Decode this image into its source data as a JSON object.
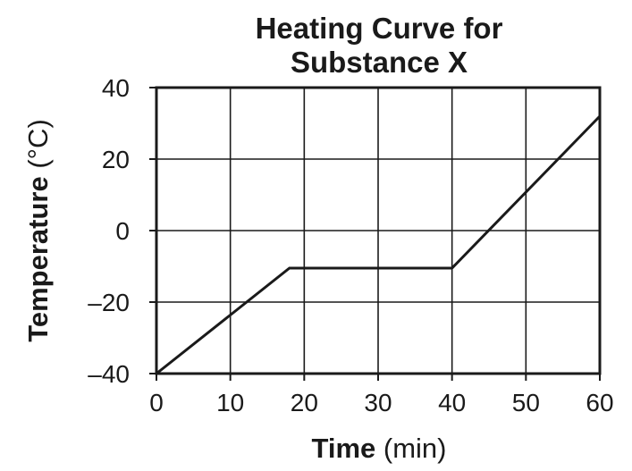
{
  "chart_data": {
    "type": "line",
    "title_line1": "Heating Curve for",
    "title_line2": "Substance X",
    "xlabel_bold": "Time",
    "xlabel_unit": " (min)",
    "ylabel_bold": "Temperature",
    "ylabel_unit": " (°C)",
    "xlim": [
      0,
      60
    ],
    "ylim": [
      -40,
      40
    ],
    "x_ticks": [
      0,
      10,
      20,
      30,
      40,
      50,
      60
    ],
    "x_tick_labels": [
      "0",
      "10",
      "20",
      "30",
      "40",
      "50",
      "60"
    ],
    "y_ticks": [
      40,
      20,
      0,
      -20,
      -40
    ],
    "y_tick_labels": [
      "40",
      "20",
      "0",
      "–20",
      "–40"
    ],
    "grid": true,
    "series": [
      {
        "x": [
          0,
          18,
          40,
          60
        ],
        "y": [
          -40,
          -10.5,
          -10.5,
          32
        ]
      }
    ],
    "line_color": "#1a1a1a"
  }
}
